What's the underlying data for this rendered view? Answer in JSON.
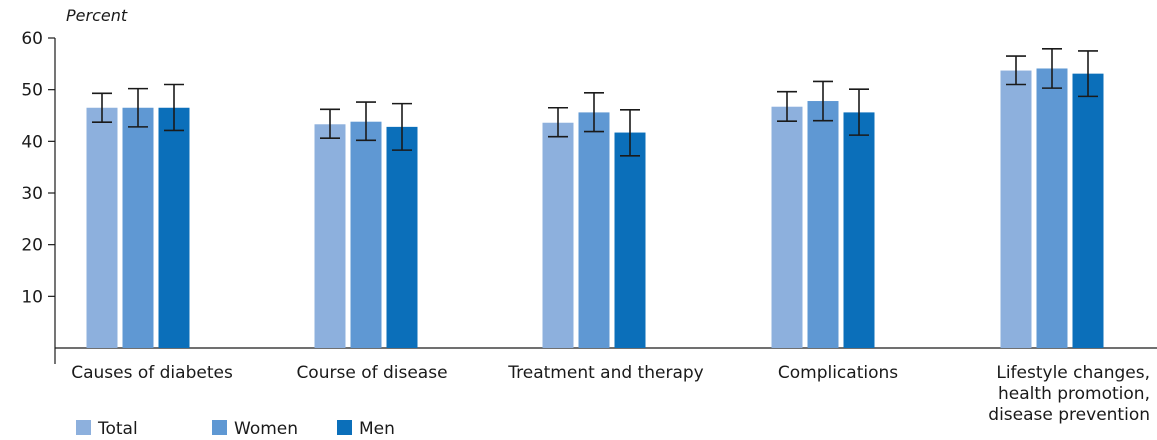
{
  "chart_data": {
    "type": "bar",
    "ylabel": "Percent",
    "ylim": [
      0,
      60
    ],
    "yticks": [
      10,
      20,
      30,
      40,
      50,
      60
    ],
    "grid": false,
    "legend_position": "bottom-left",
    "error_bars": true,
    "categories": [
      [
        "Causes of diabetes"
      ],
      [
        "Course of disease"
      ],
      [
        "Treatment and therapy"
      ],
      [
        "Complications"
      ],
      [
        "Lifestyle changes,",
        "health promotion,",
        "disease prevention"
      ]
    ],
    "series": [
      {
        "name": "Total",
        "color": "#8db0dd",
        "values": [
          46.5,
          43.3,
          43.6,
          46.7,
          53.7
        ],
        "ci_low": [
          43.7,
          40.6,
          40.9,
          43.9,
          51.0
        ],
        "ci_high": [
          49.3,
          46.2,
          46.5,
          49.6,
          56.5
        ]
      },
      {
        "name": "Women",
        "color": "#5f98d3",
        "values": [
          46.5,
          43.8,
          45.6,
          47.8,
          54.1
        ],
        "ci_low": [
          42.8,
          40.2,
          41.9,
          44.0,
          50.3
        ],
        "ci_high": [
          50.2,
          47.6,
          49.4,
          51.6,
          57.9
        ]
      },
      {
        "name": "Men",
        "color": "#0b6fba",
        "values": [
          46.5,
          42.8,
          41.7,
          45.6,
          53.1
        ],
        "ci_low": [
          42.1,
          38.3,
          37.2,
          41.2,
          48.7
        ],
        "ci_high": [
          51.0,
          47.3,
          46.1,
          50.1,
          57.5
        ]
      }
    ]
  }
}
